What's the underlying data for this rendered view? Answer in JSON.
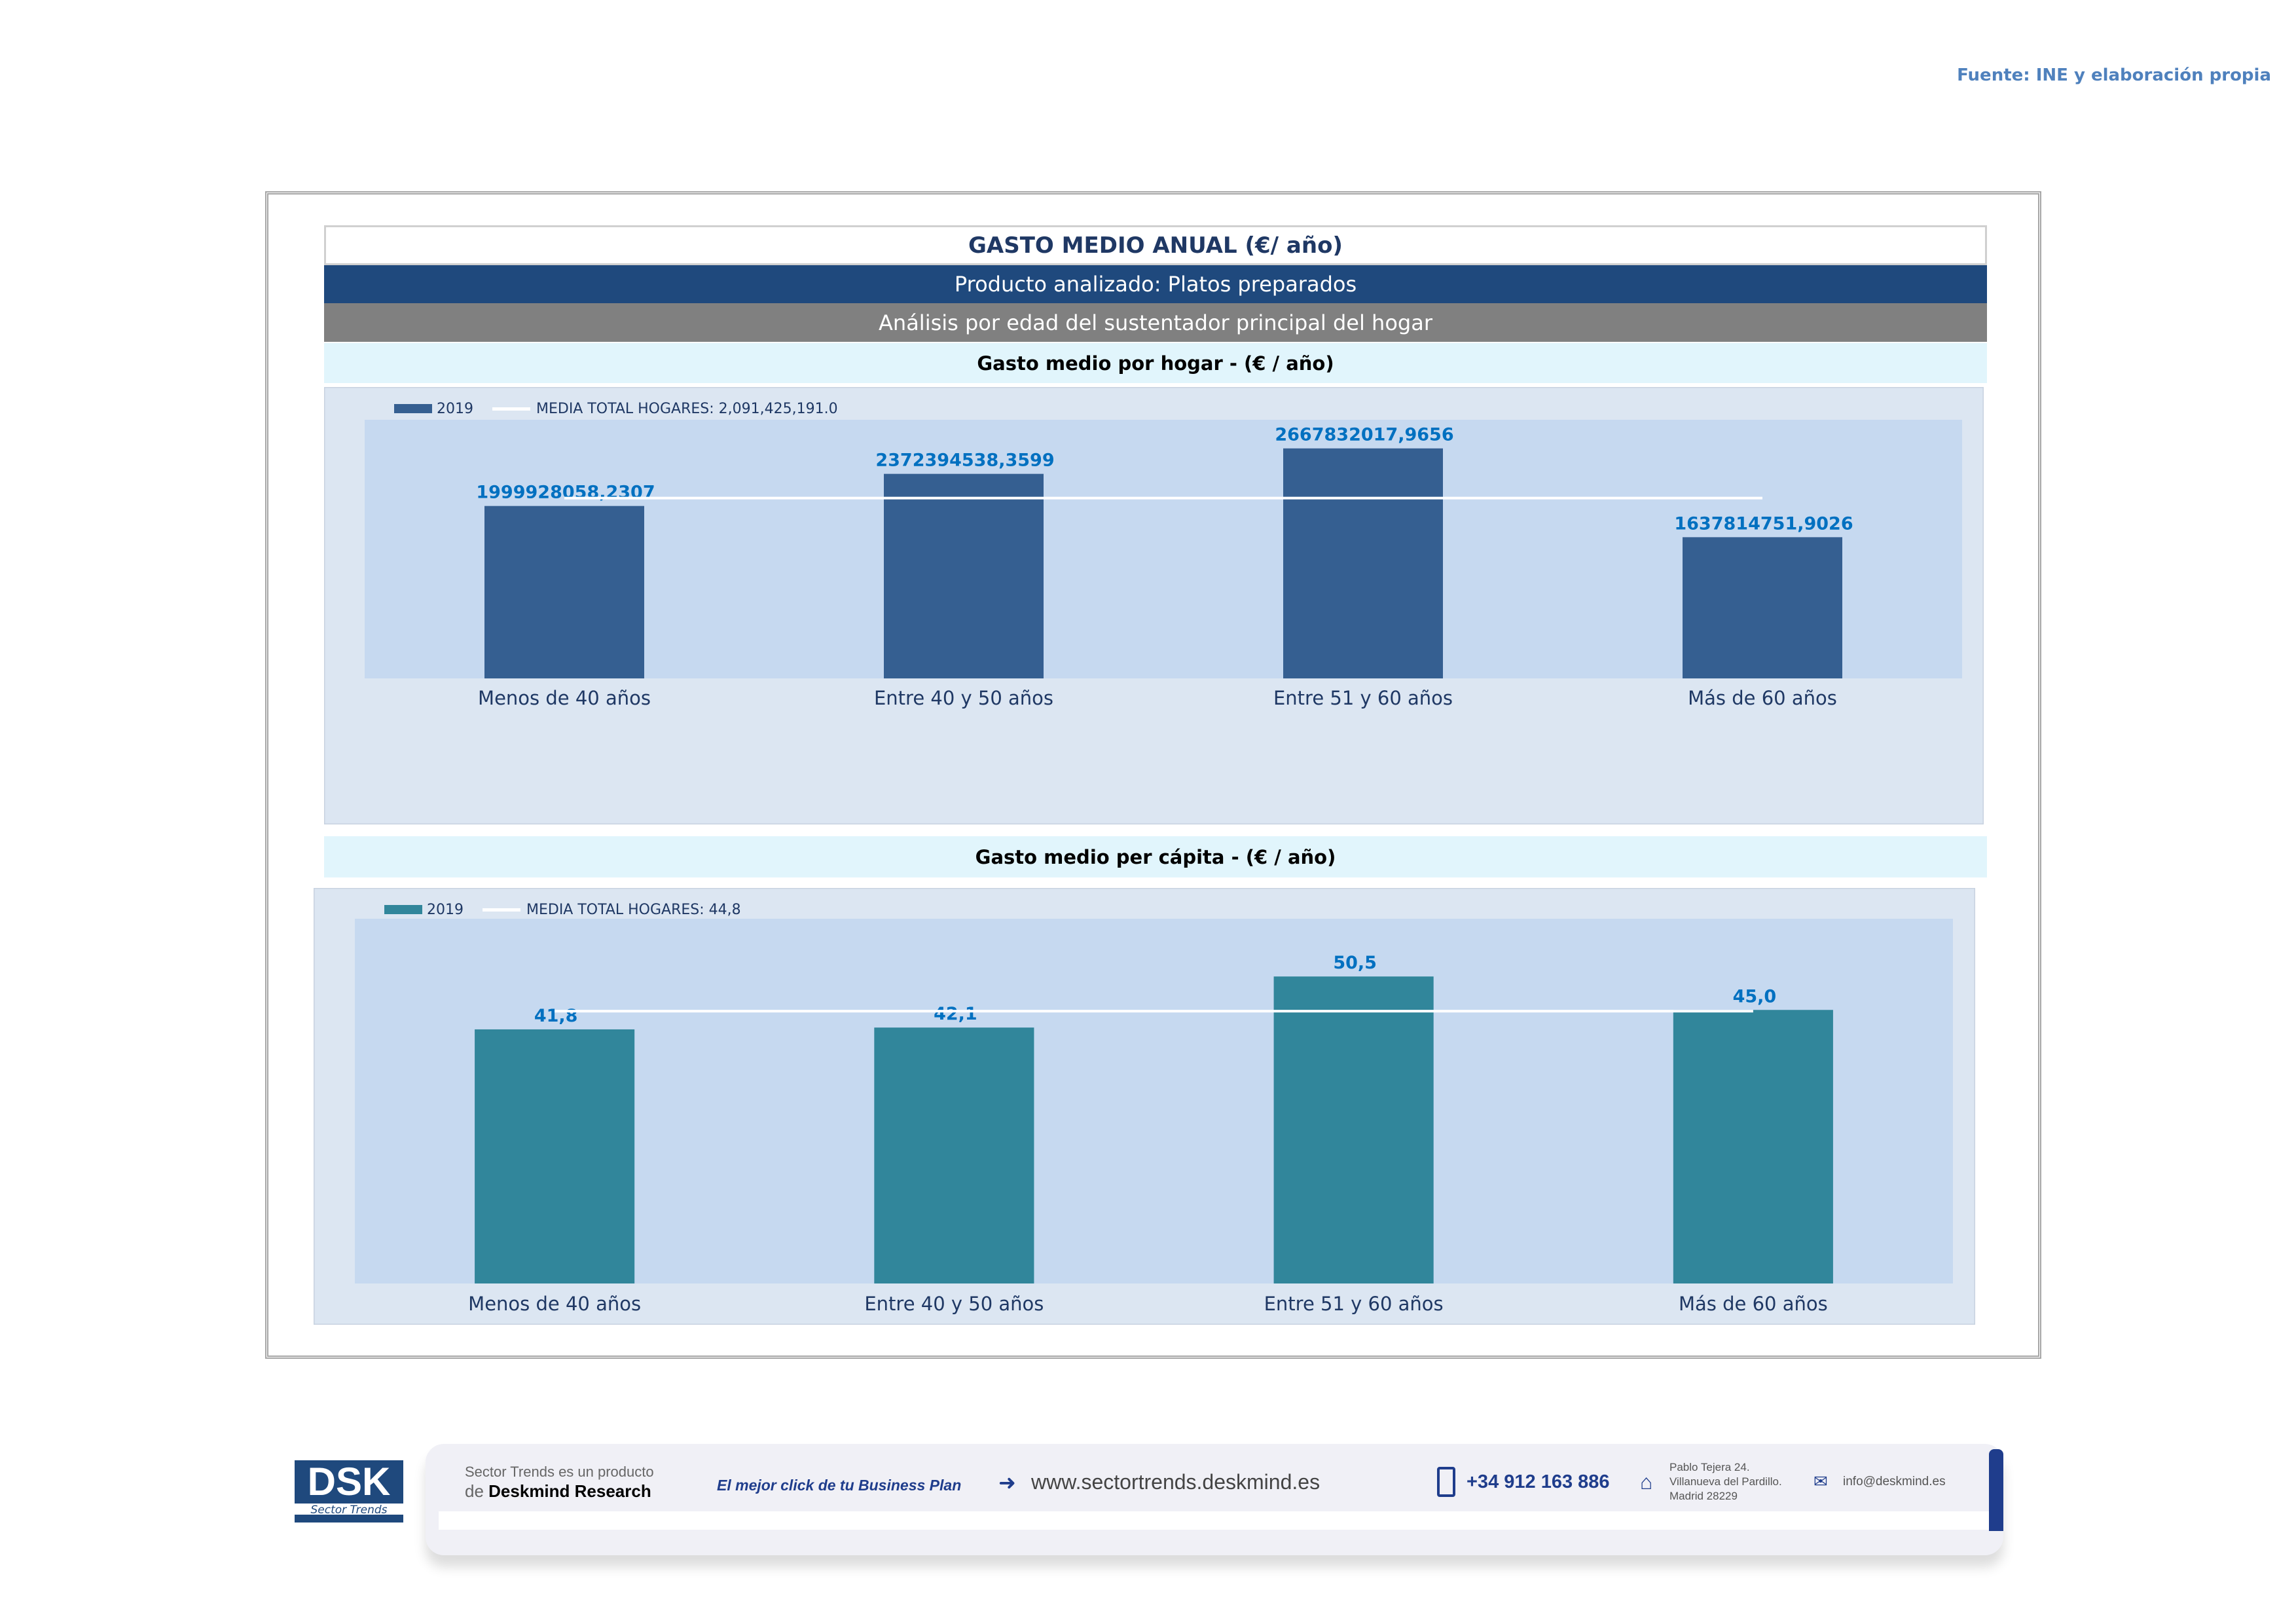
{
  "source": "Fuente: INE y elaboración propia",
  "header": {
    "title": "GASTO MEDIO ANUAL (€/ año)",
    "product": "Producto analizado: Platos preparados",
    "analysis": "Análisis por edad del sustentador principal del hogar"
  },
  "chart_data": [
    {
      "type": "bar",
      "title": "Gasto medio por hogar -  (€ / año)",
      "categories": [
        "Menos de 40 años",
        "Entre 40 y 50 años",
        "Entre 51  y 60 años",
        "Más de 60 años"
      ],
      "series": [
        {
          "name": "2019",
          "values": [
            1999928058.2307,
            2372394538.3599,
            2667832017.9656,
            1637814751.9026
          ]
        }
      ],
      "data_labels": [
        "1999928058,2307",
        "2372394538,3599",
        "2667832017,9656",
        "1637814751,9026"
      ],
      "reference_line": {
        "name": "MEDIA TOTAL  HOGARES:",
        "label": "2,091,425,191.0",
        "value": 2091425191.0
      },
      "ylim": [
        0,
        3000000000
      ],
      "legend": "top-left",
      "bar_color": "#355f91"
    },
    {
      "type": "bar",
      "title": "Gasto medio per cápita -  (€ / año)",
      "categories": [
        "Menos de 40 años",
        "Entre 40 y 50 años",
        "Entre 51  y 60 años",
        "Más de 60 años"
      ],
      "series": [
        {
          "name": "2019",
          "values": [
            41.8,
            42.1,
            50.5,
            45.0
          ]
        }
      ],
      "data_labels": [
        "41,8",
        "42,1",
        "50,5",
        "45,0"
      ],
      "reference_line": {
        "name": "MEDIA TOTAL  HOGARES:",
        "label": "44,8",
        "value": 44.8
      },
      "ylim": [
        0,
        60
      ],
      "legend": "top-left",
      "bar_color": "#31869b"
    }
  ],
  "footer": {
    "logo": "DSK",
    "logo_sub": "Sector Trends",
    "line1": "Sector Trends es un producto",
    "line2_pre": "de",
    "line2_brand": "Deskmind Research",
    "slogan": "El mejor click de tu Business Plan",
    "web": "www.sectortrends.deskmind.es",
    "phone": "+34 912 163 886",
    "addr1": "Pablo Tejera 24.",
    "addr2": "Villanueva del Pardillo.",
    "addr3": "Madrid 28229",
    "email": "info@deskmind.es"
  }
}
